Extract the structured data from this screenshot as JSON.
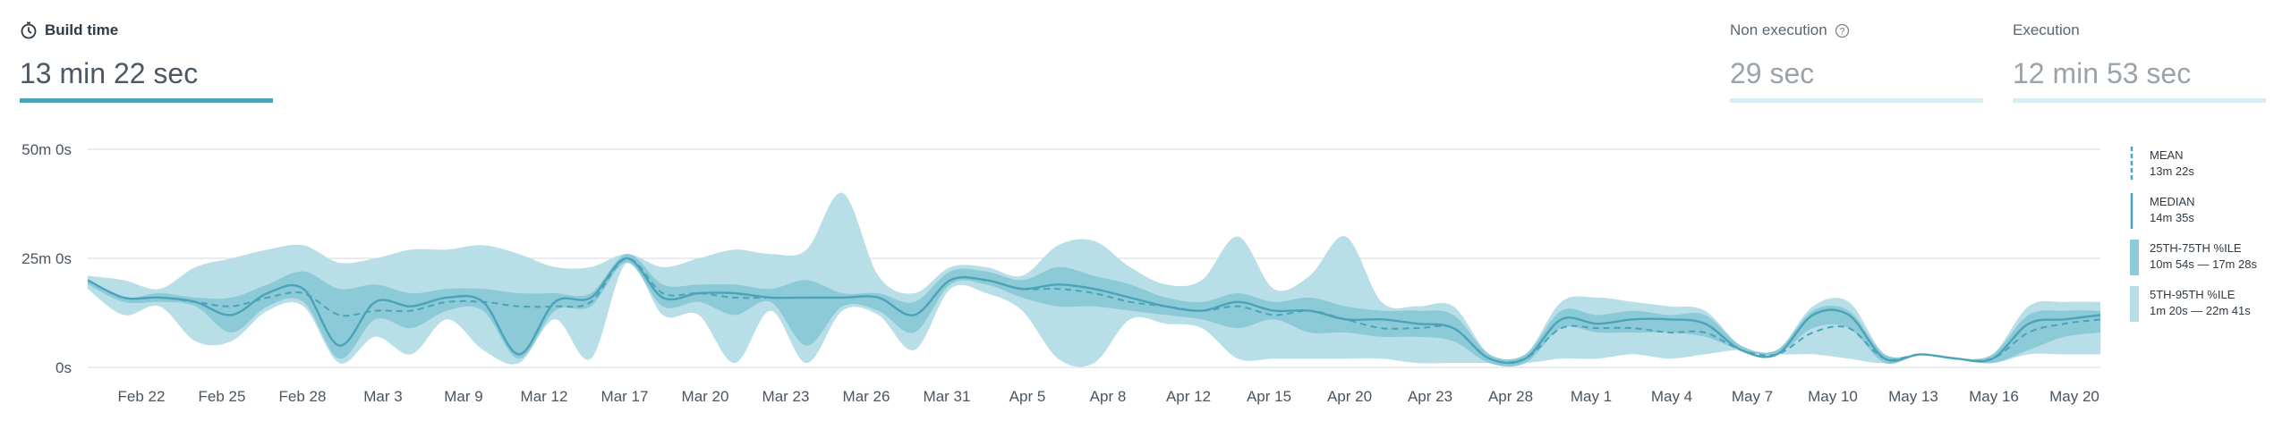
{
  "metrics": {
    "build": {
      "label": "Build time",
      "value": "13 min 22 sec",
      "fill": 1.0
    },
    "non_execution": {
      "label": "Non execution",
      "value": "29 sec",
      "fill": 0.0
    },
    "execution": {
      "label": "Execution",
      "value": "12 min 53 sec",
      "fill": 0.0
    }
  },
  "colors": {
    "line": "#4ba3b8",
    "band_inner": "#8ccad8",
    "band_outer": "#b8dfe7",
    "grid": "#dcdfe2",
    "text": "#4a5560"
  },
  "legend": [
    {
      "key": "mean",
      "title": "MEAN",
      "value": "13m 22s",
      "style": "dashed"
    },
    {
      "key": "median",
      "title": "MEDIAN",
      "value": "14m 35s",
      "style": "solid"
    },
    {
      "key": "iqr",
      "title": "25TH-75TH %ILE",
      "value": "10m 54s — 17m 28s",
      "style": "band_inner"
    },
    {
      "key": "p5_95",
      "title": "5TH-95TH %ILE",
      "value": "1m 20s — 22m 41s",
      "style": "band_outer"
    }
  ],
  "chart_data": {
    "type": "area",
    "y_unit": "minutes",
    "ylim": [
      0,
      50
    ],
    "y_ticks": [
      {
        "value": 50,
        "label": "50m 0s"
      },
      {
        "value": 25,
        "label": "25m 0s"
      },
      {
        "value": 0,
        "label": "0s"
      }
    ],
    "x_tick_labels": [
      "Feb 22",
      "Feb 25",
      "Feb 28",
      "Mar 3",
      "Mar 9",
      "Mar 12",
      "Mar 17",
      "Mar 20",
      "Mar 23",
      "Mar 26",
      "Mar 31",
      "Apr 5",
      "Apr 8",
      "Apr 12",
      "Apr 15",
      "Apr 20",
      "Apr 23",
      "Apr 28",
      "May 1",
      "May 4",
      "May 7",
      "May 10",
      "May 13",
      "May 16",
      "May 20"
    ],
    "grid": true,
    "legend_position": "right",
    "series": [
      {
        "name": "MEDIAN",
        "values": [
          20,
          16,
          16,
          15,
          12,
          17,
          18,
          5,
          15,
          14,
          16,
          15,
          3,
          15,
          16,
          25,
          16,
          17,
          17,
          16,
          16,
          16,
          16,
          12,
          20,
          20,
          18,
          19,
          18,
          16,
          14,
          13,
          15,
          13,
          13,
          11,
          11,
          10,
          9,
          2,
          2,
          11,
          10,
          11,
          11,
          10,
          4,
          3,
          12,
          12,
          2,
          3,
          2,
          2,
          10,
          11,
          12
        ]
      },
      {
        "name": "MEAN",
        "values": [
          20,
          16,
          16,
          15,
          14,
          16,
          17,
          12,
          13,
          13,
          15,
          15,
          14,
          14,
          15,
          25,
          17,
          17,
          16,
          16,
          16,
          16,
          16,
          12,
          20,
          20,
          18,
          18,
          17,
          15,
          14,
          13,
          14,
          12,
          13,
          11,
          9,
          9,
          9,
          2,
          2,
          9,
          9,
          9,
          8,
          8,
          4,
          3,
          8,
          9,
          2,
          3,
          2,
          2,
          8,
          10,
          11
        ]
      },
      {
        "name": "25TH %ILE",
        "values": [
          19,
          15,
          15,
          14,
          8,
          14,
          15,
          2,
          11,
          9,
          13,
          13,
          2,
          13,
          14,
          24,
          14,
          15,
          12,
          15,
          5,
          14,
          13,
          8,
          19,
          19,
          16,
          14,
          14,
          13,
          12,
          11,
          9,
          11,
          8,
          8,
          7,
          7,
          6,
          1,
          1,
          9,
          8,
          8,
          8,
          7,
          4,
          3,
          9,
          9,
          1,
          3,
          2,
          1,
          4,
          7,
          8
        ]
      },
      {
        "name": "75TH %ILE",
        "values": [
          20,
          16,
          17,
          16,
          16,
          19,
          22,
          18,
          19,
          17,
          18,
          18,
          17,
          17,
          17,
          26,
          19,
          19,
          19,
          18,
          20,
          17,
          17,
          15,
          22,
          22,
          20,
          23,
          21,
          19,
          16,
          15,
          17,
          15,
          16,
          14,
          13,
          13,
          12,
          3,
          3,
          13,
          12,
          13,
          12,
          12,
          5,
          4,
          13,
          13,
          3,
          3,
          2,
          3,
          12,
          13,
          13
        ]
      },
      {
        "name": "5TH %ILE",
        "values": [
          18,
          12,
          14,
          6,
          6,
          13,
          14,
          1,
          7,
          3,
          11,
          4,
          1,
          11,
          2,
          24,
          12,
          12,
          1,
          13,
          1,
          13,
          12,
          4,
          18,
          17,
          13,
          2,
          1,
          11,
          10,
          9,
          2,
          2,
          2,
          2,
          2,
          1,
          1,
          1,
          1,
          2,
          2,
          3,
          2,
          3,
          4,
          3,
          3,
          2,
          1,
          3,
          2,
          1,
          3,
          3,
          3
        ]
      },
      {
        "name": "95TH %ILE",
        "values": [
          21,
          20,
          18,
          23,
          25,
          27,
          28,
          24,
          25,
          27,
          27,
          28,
          26,
          23,
          23,
          26,
          23,
          25,
          27,
          26,
          27,
          40,
          21,
          17,
          23,
          23,
          21,
          28,
          29,
          23,
          19,
          20,
          30,
          18,
          21,
          30,
          15,
          14,
          14,
          3,
          3,
          15,
          16,
          15,
          14,
          13,
          5,
          4,
          14,
          15,
          3,
          3,
          2,
          3,
          14,
          15,
          15
        ]
      }
    ]
  }
}
